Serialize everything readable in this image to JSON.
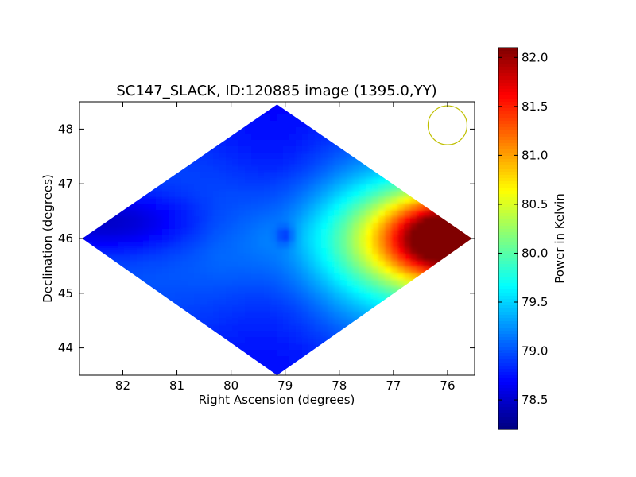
{
  "chart_data": {
    "type": "heatmap",
    "title": "SC147_SLACK, ID:120885 image (1395.0,YY)",
    "xlabel": "Right Ascension (degrees)",
    "ylabel": "Declination (degrees)",
    "xlim": [
      82.8,
      75.5
    ],
    "ylim": [
      43.5,
      48.5
    ],
    "x_ticks": [
      82,
      81,
      80,
      79,
      78,
      77,
      76
    ],
    "x_tick_labels": [
      "82",
      "81",
      "80",
      "79",
      "78",
      "77",
      "76"
    ],
    "y_ticks": [
      44,
      45,
      46,
      47,
      48
    ],
    "y_tick_labels": [
      "44",
      "45",
      "46",
      "47",
      "48"
    ],
    "grid": false,
    "region_vertices": [
      [
        79.15,
        48.45
      ],
      [
        75.55,
        46.0
      ],
      [
        79.15,
        43.5
      ],
      [
        82.75,
        46.0
      ]
    ],
    "center": [
      79.0,
      46.05
    ],
    "cold_spot": [
      82.3,
      46.3
    ],
    "hot_spot": [
      75.8,
      46.0
    ],
    "beam_circle": {
      "center": [
        76.0,
        48.07
      ],
      "radius_deg": 0.36,
      "color": "#bfbf00"
    },
    "colorbar": {
      "label": "Power in Kelvin",
      "min": 78.2,
      "max": 82.1,
      "colormap": "jet",
      "ticks": [
        78.5,
        79.0,
        79.5,
        80.0,
        80.5,
        81.0,
        81.5,
        82.0
      ],
      "tick_labels": [
        "78.5",
        "79.0",
        "79.5",
        "80.0",
        "80.5",
        "81.0",
        "81.5",
        "82.0"
      ]
    }
  }
}
